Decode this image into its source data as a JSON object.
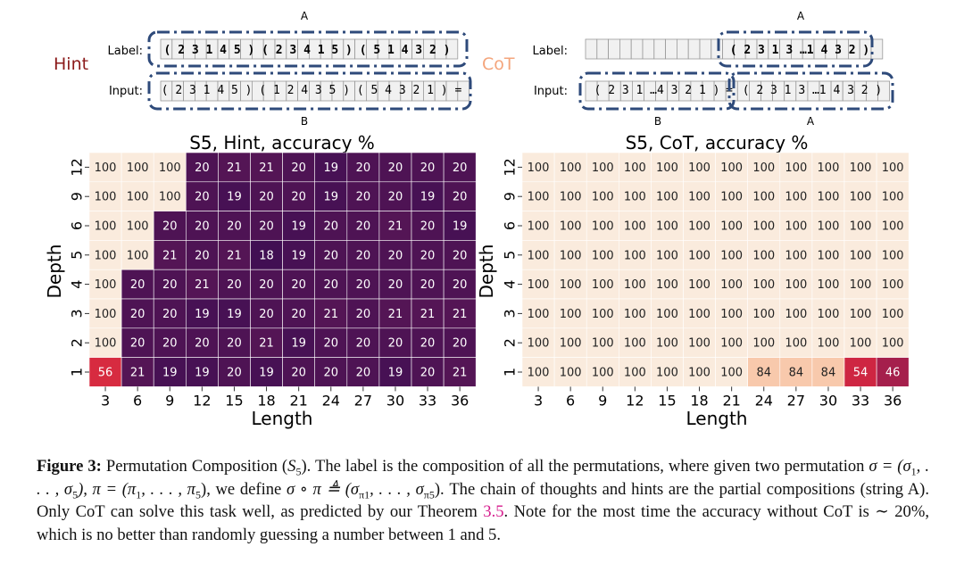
{
  "schematics": {
    "hint": {
      "name": "Hint",
      "color": "#8b1a1a",
      "label_row_label": "Label:",
      "label_seq": "( 2 3 1 4 5 ) ( 2 3 4 1 5 ) ( 5 1 4 3 2 )",
      "input_row_label": "Input:",
      "input_seq": "( 2 3 1 4 5 ) ( 1 2 4 3 5 ) ( 5 4 3 2 1 ) =",
      "tag_top": "A",
      "tag_bottom": "B"
    },
    "cot": {
      "name": "CoT",
      "color": "#f4a57c",
      "label_row_label": "Label:",
      "label_seq": "( 2 3 1 3 …1 4 3 2 )",
      "input_row_label": "Input:",
      "input_seq_b": "( 2 3 1 …4 3 2 1 )",
      "input_eq": "=",
      "input_seq_a": "( 2 3 1 3 …1 4 3 2 )",
      "tag_top": "A",
      "tag_bottom_b": "B",
      "tag_bottom_a": "A"
    },
    "box_color": "#2e4a7a"
  },
  "chart_data": [
    {
      "type": "heatmap",
      "title": "S5, Hint, accuracy %",
      "xlabel": "Length",
      "ylabel": "Depth",
      "x": [
        3,
        6,
        9,
        12,
        15,
        18,
        21,
        24,
        27,
        30,
        33,
        36
      ],
      "y": [
        12,
        9,
        6,
        5,
        4,
        3,
        2,
        1
      ],
      "values": [
        [
          100,
          100,
          100,
          20,
          21,
          21,
          20,
          19,
          20,
          20,
          20,
          20
        ],
        [
          100,
          100,
          100,
          20,
          19,
          20,
          20,
          19,
          20,
          20,
          19,
          20
        ],
        [
          100,
          100,
          20,
          20,
          20,
          20,
          19,
          20,
          20,
          21,
          20,
          19
        ],
        [
          100,
          100,
          21,
          20,
          21,
          18,
          19,
          20,
          20,
          20,
          20,
          20
        ],
        [
          100,
          20,
          20,
          21,
          20,
          20,
          20,
          20,
          20,
          20,
          20,
          20
        ],
        [
          100,
          20,
          20,
          19,
          19,
          20,
          20,
          21,
          20,
          21,
          21,
          21
        ],
        [
          100,
          20,
          20,
          20,
          20,
          21,
          19,
          20,
          20,
          20,
          20,
          20
        ],
        [
          56,
          21,
          19,
          19,
          20,
          19,
          20,
          20,
          20,
          19,
          20,
          21
        ]
      ],
      "colormap": "rocket"
    },
    {
      "type": "heatmap",
      "title": "S5, CoT, accuracy %",
      "xlabel": "Length",
      "ylabel": "Depth",
      "x": [
        3,
        6,
        9,
        12,
        15,
        18,
        21,
        24,
        27,
        30,
        33,
        36
      ],
      "y": [
        12,
        9,
        6,
        5,
        4,
        3,
        2,
        1
      ],
      "values": [
        [
          100,
          100,
          100,
          100,
          100,
          100,
          100,
          100,
          100,
          100,
          100,
          100
        ],
        [
          100,
          100,
          100,
          100,
          100,
          100,
          100,
          100,
          100,
          100,
          100,
          100
        ],
        [
          100,
          100,
          100,
          100,
          100,
          100,
          100,
          100,
          100,
          100,
          100,
          100
        ],
        [
          100,
          100,
          100,
          100,
          100,
          100,
          100,
          100,
          100,
          100,
          100,
          100
        ],
        [
          100,
          100,
          100,
          100,
          100,
          100,
          100,
          100,
          100,
          100,
          100,
          100
        ],
        [
          100,
          100,
          100,
          100,
          100,
          100,
          100,
          100,
          100,
          100,
          100,
          100
        ],
        [
          100,
          100,
          100,
          100,
          100,
          100,
          100,
          100,
          100,
          100,
          100,
          100
        ],
        [
          100,
          100,
          100,
          100,
          100,
          100,
          100,
          84,
          84,
          84,
          54,
          46
        ]
      ],
      "colormap": "rocket"
    }
  ],
  "caption": {
    "label": "Figure 3:",
    "p1": " Permutation Composition (",
    "s5": "S",
    "s5sub": "5",
    "p2": "). The label is the composition of all the permutations, where given two permutation ",
    "sigma_def": "σ = (σ",
    "sigma_sub1": "1",
    "sigma_mid": ", . . . , σ",
    "sigma_sub5": "5",
    "pi_def": "), π = (π",
    "pi_sub1": "1",
    "pi_mid": ", . . . , π",
    "pi_sub5": "5",
    "p3": "), we define ",
    "compose": "σ ∘ π ≜ (σ",
    "compose_sub1": "π1",
    "compose_mid": ", . . . , σ",
    "compose_sub5": "π5",
    "p4": "). The chain of thoughts and hints are the partial compositions (string A). Only CoT can solve this task well, as predicted by our Theorem ",
    "theorem_ref": "3.5",
    "p5": ". Note for the most time the accuracy without CoT is ∼ 20%, which is no better than randomly guessing a number between 1 and 5."
  }
}
